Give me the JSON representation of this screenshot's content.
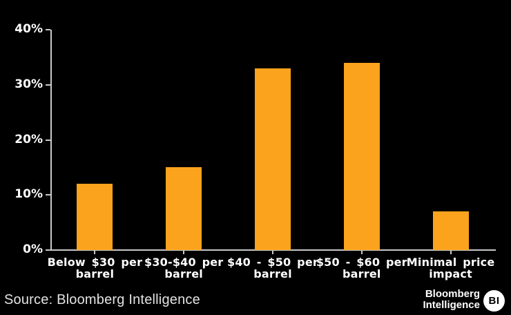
{
  "chart_data": {
    "type": "bar",
    "title": "",
    "categories": [
      "Below $30 per barrel",
      "$30-$40 per barrel",
      "$40 - $50 per barrel",
      "$50 - $60 per barrel",
      "Minimal price impact"
    ],
    "category_lines": [
      [
        "Below $30 per",
        "barrel"
      ],
      [
        "$30-$40 per",
        "barrel"
      ],
      [
        "$40 - $50 per",
        "barrel"
      ],
      [
        "$50 - $60 per",
        "barrel"
      ],
      [
        "Minimal price",
        "impact"
      ]
    ],
    "values": [
      12,
      15,
      33,
      34,
      7
    ],
    "unit": "%",
    "xlabel": "",
    "ylabel": "",
    "ylim": [
      0,
      40
    ],
    "yticks": [
      0,
      10,
      20,
      30,
      40
    ],
    "ytick_labels": [
      "0%",
      "10%",
      "20%",
      "30%",
      "40%"
    ],
    "legend": "none",
    "grid": false,
    "bar_color": "#FBA31C",
    "axis_color": "#C9C9C9",
    "text_color": "#FFFFFF",
    "background_color": "#000000"
  },
  "footer": {
    "source": "Source: Bloomberg Intelligence",
    "brand": {
      "line1": "Bloomberg",
      "line2": "Intelligence",
      "badge": "BI"
    }
  }
}
